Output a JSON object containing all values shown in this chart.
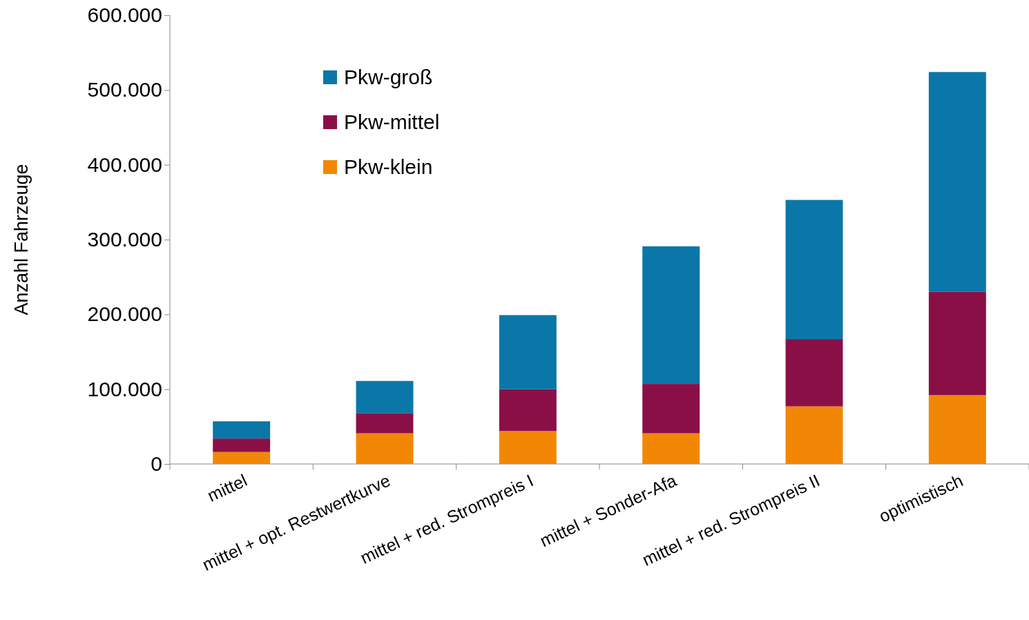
{
  "chart_data": {
    "type": "bar",
    "stacked": true,
    "ylabel": "Anzahl Fahrzeuge",
    "categories": [
      "mittel",
      "mittel + opt. Restwertkurve",
      "mittel + red. Strompreis I",
      "mittel + Sonder-Afa",
      "mittel + red. Strompreis II",
      "optimistisch"
    ],
    "series": [
      {
        "name": "Pkw-klein",
        "color": "#f28705",
        "values": [
          16000,
          41000,
          44000,
          41000,
          77000,
          92000
        ]
      },
      {
        "name": "Pkw-mittel",
        "color": "#8b0f47",
        "values": [
          18000,
          27000,
          56000,
          66000,
          90000,
          138000
        ]
      },
      {
        "name": "Pkw-groß",
        "color": "#0a77a8",
        "values": [
          23000,
          43000,
          99000,
          184000,
          186000,
          294000
        ]
      }
    ],
    "ylim": [
      0,
      600000
    ],
    "yticks": [
      {
        "value": 0,
        "label": "0"
      },
      {
        "value": 100000,
        "label": "100.000"
      },
      {
        "value": 200000,
        "label": "200.000"
      },
      {
        "value": 300000,
        "label": "300.000"
      },
      {
        "value": 400000,
        "label": "400.000"
      },
      {
        "value": 500000,
        "label": "500.000"
      },
      {
        "value": 600000,
        "label": "600.000"
      }
    ],
    "legend": "top left",
    "grid": false
  }
}
